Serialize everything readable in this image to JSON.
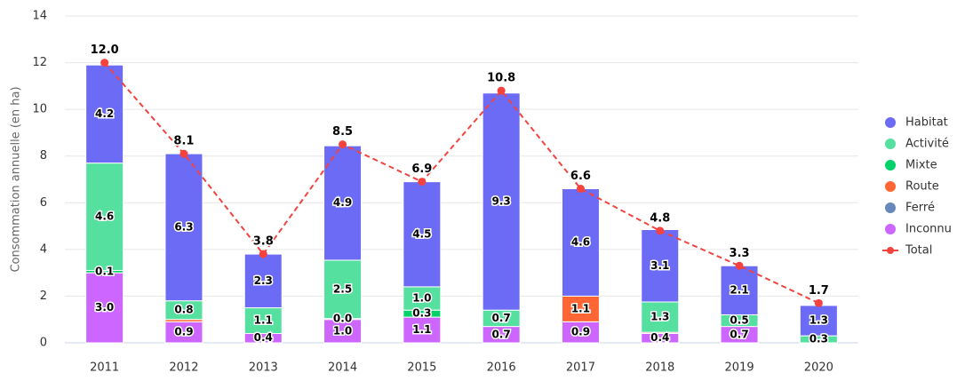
{
  "chart_data": {
    "type": "stacked_bar_line",
    "ylabel": "Consommation annuelle (en ha)",
    "categories": [
      "2011",
      "2012",
      "2013",
      "2014",
      "2015",
      "2016",
      "2017",
      "2018",
      "2019",
      "2020"
    ],
    "ylim": [
      0,
      14
    ],
    "yticks": [
      0,
      2,
      4,
      6,
      8,
      10,
      12,
      14
    ],
    "grid": true,
    "legend": "right",
    "series": [
      {
        "name": "Inconnu",
        "color": "#cc66ff",
        "values": [
          3.0,
          0.9,
          0.4,
          1.0,
          1.1,
          0.7,
          0.9,
          0.4,
          0.7,
          null
        ],
        "value_labels": [
          "3.0",
          "0.9",
          "0.4",
          "1.0",
          "1.1",
          "0.7",
          "0.9",
          "0.4",
          "0.7",
          null
        ]
      },
      {
        "name": "Ferré",
        "color": "#6688bb",
        "values": [
          null,
          null,
          null,
          null,
          null,
          null,
          null,
          null,
          null,
          null
        ],
        "value_labels": [
          null,
          null,
          null,
          null,
          null,
          null,
          null,
          null,
          null,
          null
        ]
      },
      {
        "name": "Route",
        "color": "#ff6633",
        "values": [
          null,
          0.1,
          null,
          0.04,
          null,
          null,
          1.1,
          0.05,
          null,
          null
        ],
        "value_labels": [
          null,
          null,
          null,
          "0.0",
          null,
          null,
          "1.1",
          null,
          null,
          null
        ]
      },
      {
        "name": "Mixte",
        "color": "#00d26a",
        "values": [
          0.1,
          null,
          null,
          null,
          0.3,
          null,
          null,
          null,
          null,
          null
        ],
        "value_labels": [
          "0.1",
          null,
          null,
          null,
          "0.3",
          null,
          null,
          null,
          null,
          null
        ]
      },
      {
        "name": "Activité",
        "color": "#55e0a0",
        "values": [
          4.6,
          0.8,
          1.1,
          2.5,
          1.0,
          0.7,
          null,
          1.3,
          0.5,
          0.3
        ],
        "value_labels": [
          "4.6",
          "0.8",
          "1.1",
          "2.5",
          "1.0",
          "0.7",
          null,
          "1.3",
          "0.5",
          "0.3"
        ]
      },
      {
        "name": "Habitat",
        "color": "#6b6bf5",
        "values": [
          4.2,
          6.3,
          2.3,
          4.9,
          4.5,
          9.3,
          4.6,
          3.1,
          2.1,
          1.3
        ],
        "value_labels": [
          "4.2",
          "6.3",
          "2.3",
          "4.9",
          "4.5",
          "9.3",
          "4.6",
          "3.1",
          "2.1",
          "1.3"
        ]
      }
    ],
    "total": {
      "name": "Total",
      "color": "#f4433f",
      "values": [
        12.0,
        8.1,
        3.8,
        8.5,
        6.9,
        10.8,
        6.6,
        4.8,
        3.3,
        1.7
      ],
      "value_labels": [
        "12.0",
        "8.1",
        "3.8",
        "8.5",
        "6.9",
        "10.8",
        "6.6",
        "4.8",
        "3.3",
        "1.7"
      ]
    },
    "legend_order": [
      5,
      4,
      3,
      2,
      1,
      0
    ]
  }
}
